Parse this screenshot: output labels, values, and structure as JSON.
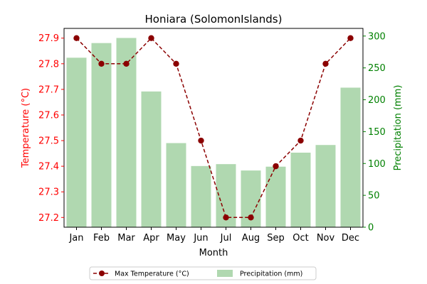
{
  "chart_data": {
    "type": "bar+line",
    "title": "Honiara (SolomonIslands)",
    "xlabel": "Month",
    "ylabel_left": "Temperature (°C)",
    "ylabel_right": "Precipitation (mm)",
    "categories": [
      "Jan",
      "Feb",
      "Mar",
      "Apr",
      "May",
      "Jun",
      "Jul",
      "Aug",
      "Sep",
      "Oct",
      "Nov",
      "Dec"
    ],
    "left_axis": {
      "ylim": [
        27.162,
        27.938
      ],
      "ticks": [
        27.2,
        27.3,
        27.4,
        27.5,
        27.6,
        27.7,
        27.8,
        27.9
      ],
      "tick_labels": [
        "27.2",
        "27.3",
        "27.4",
        "27.5",
        "27.6",
        "27.7",
        "27.8",
        "27.9"
      ]
    },
    "right_axis": {
      "ylim": [
        0,
        312
      ],
      "ticks": [
        0,
        50,
        100,
        150,
        200,
        250,
        300
      ],
      "tick_labels": [
        "0",
        "50",
        "100",
        "150",
        "200",
        "250",
        "300"
      ]
    },
    "series": [
      {
        "name": "Max Temperature (°C)",
        "kind": "line",
        "axis": "left",
        "color": "#8b0000",
        "values": [
          27.9,
          27.8,
          27.8,
          27.9,
          27.8,
          27.5,
          27.2,
          27.2,
          27.4,
          27.5,
          27.8,
          27.9
        ]
      },
      {
        "name": "Precipitation (mm)",
        "kind": "bar",
        "axis": "right",
        "color": "#b0d8b0",
        "values": [
          266,
          289,
          297,
          213,
          132,
          96,
          99,
          89,
          95,
          117,
          129,
          219
        ]
      }
    ],
    "legend_position": "bottom-center",
    "grid": false
  },
  "colors": {
    "left_axis": "#ff0000",
    "right_axis": "#008000",
    "line": "#8b0000",
    "bars": "#b0d8b0"
  }
}
